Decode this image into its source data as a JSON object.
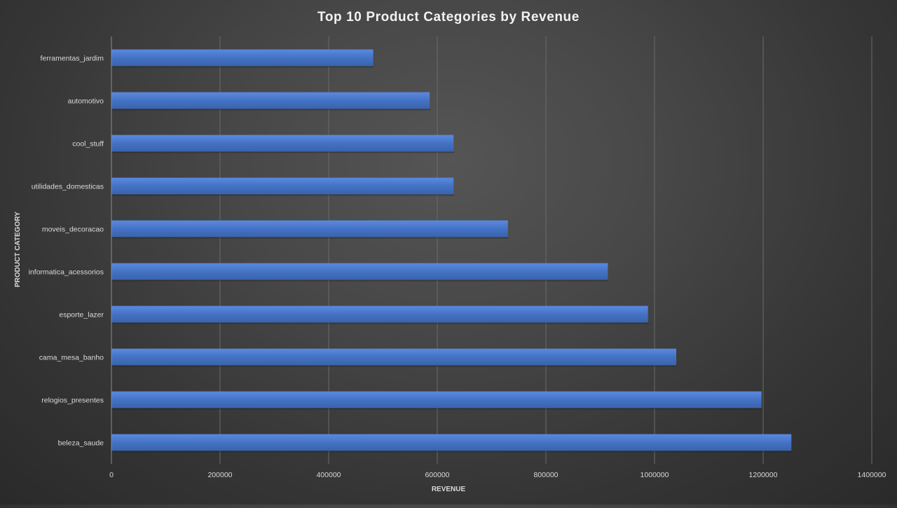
{
  "chart_data": {
    "type": "bar",
    "orientation": "horizontal",
    "title": "Top 10 Product Categories by Revenue",
    "xlabel": "REVENUE",
    "ylabel": "PRODUCT CATEGORY",
    "categories": [
      "ferramentas_jardim",
      "automotivo",
      "cool_stuff",
      "utilidades_domesticas",
      "moveis_decoracao",
      "informatica_acessorios",
      "esporte_lazer",
      "cama_mesa_banho",
      "relogios_presentes",
      "beleza_saude"
    ],
    "values": [
      482000,
      586000,
      630000,
      630000,
      730000,
      914000,
      988000,
      1040000,
      1197000,
      1252000
    ],
    "xlim": [
      0,
      1400000
    ],
    "xticks": [
      0,
      200000,
      400000,
      600000,
      800000,
      1000000,
      1200000,
      1400000
    ],
    "xtick_labels": [
      "0",
      "200000",
      "400000",
      "600000",
      "800000",
      "1000000",
      "1200000",
      "1400000"
    ],
    "grid": "vertical",
    "legend": "none",
    "bar_color": "#4472c4",
    "background_color": "#404040",
    "text_color": "#d9d9d9",
    "title_color": "#f2f2f2"
  }
}
